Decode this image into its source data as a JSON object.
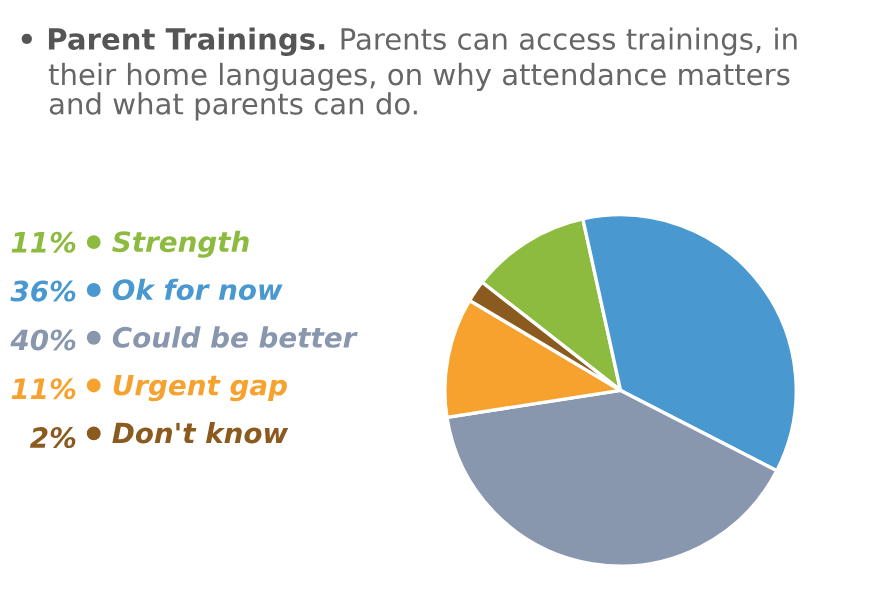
{
  "chart_data": {
    "type": "pie",
    "title": "• Parent Trainings.",
    "subtitle": "Parents can access trainings, in\ntheir home languages, on why attendance matters\nand what parents can do.",
    "categories": [
      "Strength",
      "Ok for now",
      "Could be better",
      "Urgent gap",
      "Don't know"
    ],
    "values": [
      11,
      36,
      40,
      11,
      2
    ],
    "value_labels": [
      "11%",
      "36%",
      "40%",
      "11%",
      "2%"
    ],
    "colors": [
      "#8cbb3f",
      "#4a98d0",
      "#8897ae",
      "#f7a22f",
      "#8b5a1f"
    ],
    "legend": "left"
  }
}
